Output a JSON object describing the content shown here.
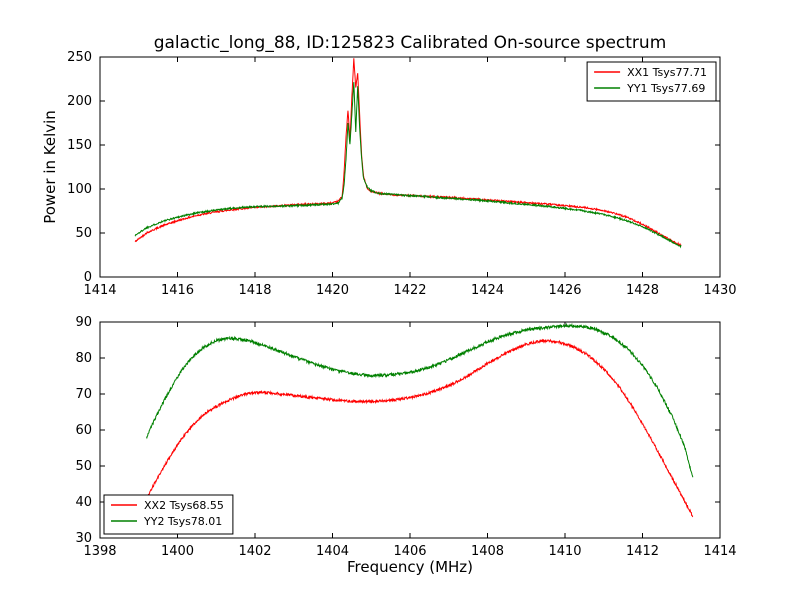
{
  "figure": {
    "background": "#ffffff",
    "frame_color": "#000000"
  },
  "chart_data": [
    {
      "type": "line",
      "title": "galactic_long_88, ID:125823 Calibrated On-source spectrum",
      "xlabel": "",
      "ylabel": "Power in Kelvin",
      "xlim": [
        1414,
        1430
      ],
      "ylim": [
        0,
        250
      ],
      "xticks": [
        1414,
        1416,
        1418,
        1420,
        1422,
        1424,
        1426,
        1428,
        1430
      ],
      "yticks": [
        0,
        50,
        100,
        150,
        200,
        250
      ],
      "grid": false,
      "legend_position": "top-right",
      "series": [
        {
          "name": "XX1 Tsys77.71",
          "color": "#ff0000",
          "noise": 0.9,
          "seed": 42,
          "points": [
            [
              1414.9,
              40
            ],
            [
              1415.2,
              50
            ],
            [
              1415.6,
              58
            ],
            [
              1416.0,
              64
            ],
            [
              1416.5,
              70
            ],
            [
              1417.0,
              74
            ],
            [
              1417.5,
              77
            ],
            [
              1418.0,
              79
            ],
            [
              1418.5,
              80.5
            ],
            [
              1419.0,
              82
            ],
            [
              1419.5,
              83
            ],
            [
              1419.8,
              83.5
            ],
            [
              1420.0,
              84
            ],
            [
              1420.15,
              86
            ],
            [
              1420.25,
              92
            ],
            [
              1420.3,
              120
            ],
            [
              1420.35,
              160
            ],
            [
              1420.4,
              190
            ],
            [
              1420.45,
              155
            ],
            [
              1420.5,
              205
            ],
            [
              1420.55,
              248
            ],
            [
              1420.6,
              215
            ],
            [
              1420.65,
              232
            ],
            [
              1420.7,
              185
            ],
            [
              1420.75,
              140
            ],
            [
              1420.8,
              115
            ],
            [
              1420.9,
              100
            ],
            [
              1421.0,
              97
            ],
            [
              1421.2,
              95
            ],
            [
              1421.5,
              93.5
            ],
            [
              1422.0,
              92.5
            ],
            [
              1422.5,
              91.5
            ],
            [
              1423.0,
              90.5
            ],
            [
              1423.5,
              89
            ],
            [
              1424.0,
              87.5
            ],
            [
              1424.5,
              86
            ],
            [
              1425.0,
              84.5
            ],
            [
              1425.5,
              83
            ],
            [
              1426.0,
              81
            ],
            [
              1426.5,
              79
            ],
            [
              1427.0,
              75.5
            ],
            [
              1427.3,
              72
            ],
            [
              1427.6,
              68
            ],
            [
              1428.0,
              60
            ],
            [
              1428.4,
              50
            ],
            [
              1428.8,
              40
            ],
            [
              1429.0,
              36
            ]
          ]
        },
        {
          "name": "YY1 Tsys77.69",
          "color": "#008000",
          "noise": 0.9,
          "seed": 1337,
          "points": [
            [
              1414.9,
              47
            ],
            [
              1415.2,
              56
            ],
            [
              1415.6,
              63
            ],
            [
              1416.0,
              68
            ],
            [
              1416.5,
              73
            ],
            [
              1417.0,
              76
            ],
            [
              1417.5,
              78.5
            ],
            [
              1418.0,
              80
            ],
            [
              1418.5,
              80.5
            ],
            [
              1419.0,
              81
            ],
            [
              1419.5,
              82
            ],
            [
              1420.0,
              83
            ],
            [
              1420.15,
              84
            ],
            [
              1420.25,
              90
            ],
            [
              1420.3,
              105
            ],
            [
              1420.35,
              135
            ],
            [
              1420.4,
              175
            ],
            [
              1420.45,
              150
            ],
            [
              1420.5,
              185
            ],
            [
              1420.55,
              222
            ],
            [
              1420.6,
              165
            ],
            [
              1420.65,
              218
            ],
            [
              1420.7,
              170
            ],
            [
              1420.75,
              135
            ],
            [
              1420.8,
              112
            ],
            [
              1420.9,
              102
            ],
            [
              1421.0,
              98
            ],
            [
              1421.2,
              95
            ],
            [
              1421.5,
              94
            ],
            [
              1422.0,
              92.5
            ],
            [
              1422.5,
              91
            ],
            [
              1423.0,
              89.5
            ],
            [
              1423.5,
              88
            ],
            [
              1424.0,
              86.5
            ],
            [
              1424.5,
              84.5
            ],
            [
              1425.0,
              82.5
            ],
            [
              1425.5,
              80.5
            ],
            [
              1426.0,
              78
            ],
            [
              1426.5,
              75
            ],
            [
              1427.0,
              71
            ],
            [
              1427.4,
              66.5
            ],
            [
              1427.8,
              61
            ],
            [
              1428.2,
              53
            ],
            [
              1428.6,
              44
            ],
            [
              1429.0,
              34.5
            ]
          ]
        }
      ]
    },
    {
      "type": "line",
      "title": "",
      "xlabel": "Frequency (MHz)",
      "ylabel": "",
      "xlim": [
        1398,
        1414
      ],
      "ylim": [
        30,
        90
      ],
      "xticks": [
        1398,
        1400,
        1402,
        1404,
        1406,
        1408,
        1410,
        1412,
        1414
      ],
      "yticks": [
        30,
        40,
        50,
        60,
        70,
        80,
        90
      ],
      "grid": false,
      "legend_position": "bottom-left",
      "series": [
        {
          "name": "XX2 Tsys68.55",
          "color": "#ff0000",
          "noise": 0.35,
          "seed": 2024,
          "points": [
            [
              1399.2,
              41
            ],
            [
              1399.5,
              47
            ],
            [
              1399.8,
              52.5
            ],
            [
              1400.1,
              57.5
            ],
            [
              1400.4,
              61.5
            ],
            [
              1400.7,
              64.5
            ],
            [
              1401.0,
              66.5
            ],
            [
              1401.3,
              68.2
            ],
            [
              1401.6,
              69.5
            ],
            [
              1401.9,
              70.3
            ],
            [
              1402.2,
              70.5
            ],
            [
              1402.5,
              70.2
            ],
            [
              1402.8,
              69.8
            ],
            [
              1403.1,
              69.4
            ],
            [
              1403.5,
              69
            ],
            [
              1404.0,
              68.4
            ],
            [
              1404.5,
              68
            ],
            [
              1405.0,
              67.9
            ],
            [
              1405.5,
              68.2
            ],
            [
              1406.0,
              69
            ],
            [
              1406.5,
              70.3
            ],
            [
              1407.0,
              72.3
            ],
            [
              1407.5,
              75
            ],
            [
              1408.0,
              78.5
            ],
            [
              1408.5,
              81.5
            ],
            [
              1409.0,
              83.8
            ],
            [
              1409.4,
              84.8
            ],
            [
              1409.8,
              84.6
            ],
            [
              1410.2,
              83.2
            ],
            [
              1410.6,
              80.8
            ],
            [
              1411.0,
              77
            ],
            [
              1411.4,
              72
            ],
            [
              1411.8,
              65.5
            ],
            [
              1412.2,
              58
            ],
            [
              1412.6,
              50
            ],
            [
              1413.0,
              42
            ],
            [
              1413.3,
              36
            ]
          ]
        },
        {
          "name": "YY2 Tsys78.01",
          "color": "#008000",
          "noise": 0.4,
          "seed": 777,
          "points": [
            [
              1399.2,
              58
            ],
            [
              1399.5,
              65
            ],
            [
              1399.8,
              71
            ],
            [
              1400.1,
              76.5
            ],
            [
              1400.4,
              80.5
            ],
            [
              1400.7,
              83.2
            ],
            [
              1401.0,
              84.8
            ],
            [
              1401.3,
              85.5
            ],
            [
              1401.6,
              85.3
            ],
            [
              1401.9,
              84.6
            ],
            [
              1402.2,
              83.6
            ],
            [
              1402.5,
              82.4
            ],
            [
              1402.8,
              81.2
            ],
            [
              1403.1,
              80
            ],
            [
              1403.5,
              78.4
            ],
            [
              1404.0,
              76.8
            ],
            [
              1404.5,
              75.7
            ],
            [
              1405.0,
              75.1
            ],
            [
              1405.5,
              75.3
            ],
            [
              1406.0,
              76
            ],
            [
              1406.5,
              77.4
            ],
            [
              1407.0,
              79.5
            ],
            [
              1407.5,
              82
            ],
            [
              1408.0,
              84.5
            ],
            [
              1408.5,
              86.5
            ],
            [
              1409.0,
              87.8
            ],
            [
              1409.5,
              88.5
            ],
            [
              1410.0,
              89
            ],
            [
              1410.4,
              88.9
            ],
            [
              1410.8,
              88
            ],
            [
              1411.2,
              86
            ],
            [
              1411.6,
              82.8
            ],
            [
              1412.0,
              78
            ],
            [
              1412.4,
              71.5
            ],
            [
              1412.8,
              63
            ],
            [
              1413.1,
              55
            ],
            [
              1413.3,
              46.5
            ]
          ]
        }
      ]
    }
  ]
}
